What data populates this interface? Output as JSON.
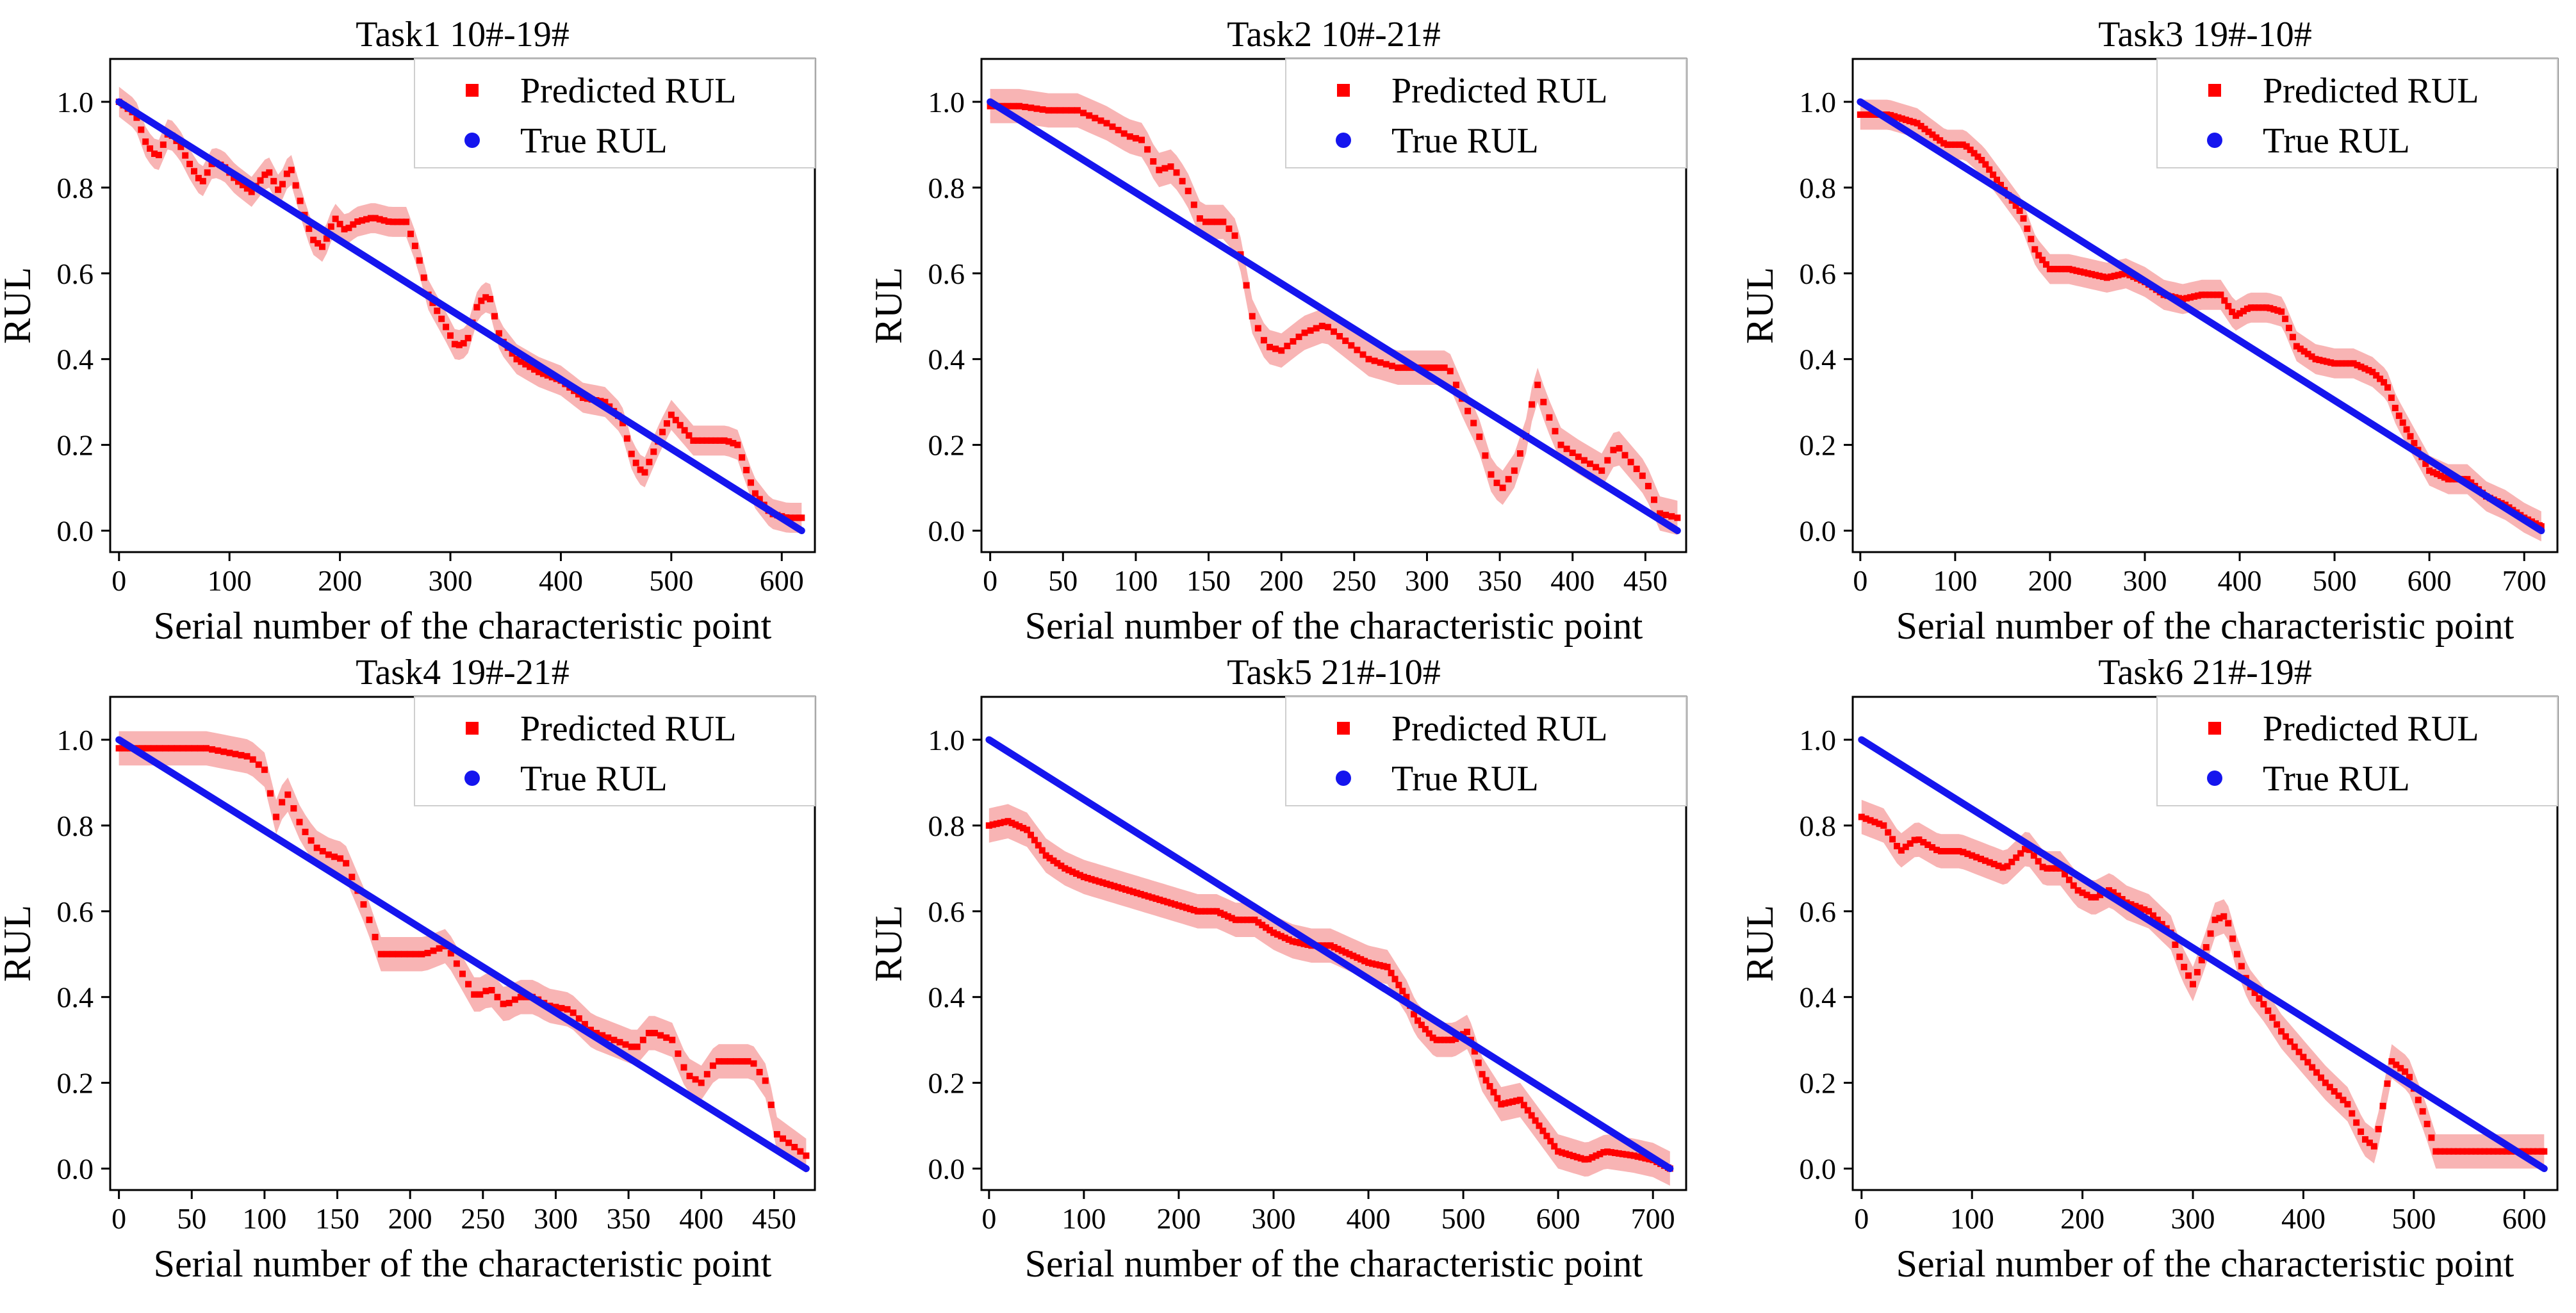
{
  "chart_data": [
    {
      "type": "line",
      "title": "Task1 10#-19#",
      "xlabel": "Serial number of the characteristic point",
      "ylabel": "RUL",
      "xlim": [
        -8,
        630
      ],
      "ylim": [
        -0.05,
        1.1
      ],
      "xticks": [
        0,
        100,
        200,
        300,
        400,
        500,
        600
      ],
      "yticks": [
        0.0,
        0.2,
        0.4,
        0.6,
        0.8,
        1.0
      ],
      "ytick_labels": [
        "0.0",
        "0.2",
        "0.4",
        "0.6",
        "0.8",
        "1.0"
      ],
      "legend": [
        "Predicted RUL",
        "True RUL"
      ],
      "legend_position": "top-right",
      "n_points": 618,
      "colors": {
        "predicted": "#ff0000",
        "band": "#f7a7a7",
        "true": "#1515ee"
      },
      "series": [
        {
          "name": "Predicted RUL",
          "x": [
            0,
            15,
            25,
            35,
            45,
            55,
            65,
            75,
            85,
            95,
            105,
            120,
            135,
            145,
            155,
            165,
            175,
            185,
            195,
            205,
            215,
            230,
            245,
            260,
            270,
            280,
            295,
            305,
            315,
            325,
            335,
            345,
            360,
            380,
            400,
            420,
            440,
            455,
            465,
            475,
            490,
            500,
            520,
            540,
            550,
            560,
            575,
            590,
            605,
            618
          ],
          "y": [
            1.0,
            0.97,
            0.9,
            0.87,
            0.93,
            0.9,
            0.85,
            0.81,
            0.86,
            0.85,
            0.82,
            0.79,
            0.84,
            0.79,
            0.85,
            0.76,
            0.68,
            0.66,
            0.73,
            0.7,
            0.72,
            0.73,
            0.72,
            0.72,
            0.65,
            0.55,
            0.48,
            0.43,
            0.44,
            0.53,
            0.55,
            0.45,
            0.4,
            0.37,
            0.35,
            0.31,
            0.3,
            0.26,
            0.17,
            0.13,
            0.22,
            0.27,
            0.21,
            0.21,
            0.21,
            0.2,
            0.09,
            0.04,
            0.03,
            0.03
          ],
          "band_halfwidth": 0.035
        },
        {
          "name": "True RUL",
          "x": [
            0,
            618
          ],
          "y": [
            1.0,
            0.0
          ]
        }
      ]
    },
    {
      "type": "line",
      "title": "Task2 10#-21#",
      "xlabel": "Serial number of the characteristic point",
      "ylabel": "RUL",
      "xlim": [
        -6,
        478
      ],
      "ylim": [
        -0.05,
        1.1
      ],
      "xticks": [
        0,
        50,
        100,
        150,
        200,
        250,
        300,
        350,
        400,
        450
      ],
      "yticks": [
        0.0,
        0.2,
        0.4,
        0.6,
        0.8,
        1.0
      ],
      "ytick_labels": [
        "0.0",
        "0.2",
        "0.4",
        "0.6",
        "0.8",
        "1.0"
      ],
      "legend": [
        "Predicted RUL",
        "True RUL"
      ],
      "legend_position": "top-right",
      "n_points": 472,
      "colors": {
        "predicted": "#ff0000",
        "band": "#f7a7a7",
        "true": "#1515ee"
      },
      "series": [
        {
          "name": "Predicted RUL",
          "x": [
            0,
            20,
            40,
            60,
            80,
            95,
            105,
            115,
            125,
            135,
            145,
            160,
            170,
            180,
            190,
            200,
            215,
            230,
            245,
            260,
            280,
            300,
            315,
            325,
            335,
            345,
            352,
            360,
            368,
            375,
            382,
            392,
            405,
            420,
            430,
            440,
            450,
            460,
            472
          ],
          "y": [
            0.99,
            0.99,
            0.98,
            0.98,
            0.95,
            0.92,
            0.91,
            0.84,
            0.85,
            0.8,
            0.72,
            0.72,
            0.68,
            0.5,
            0.43,
            0.42,
            0.46,
            0.48,
            0.44,
            0.4,
            0.38,
            0.38,
            0.38,
            0.3,
            0.23,
            0.12,
            0.1,
            0.14,
            0.22,
            0.35,
            0.28,
            0.2,
            0.17,
            0.14,
            0.2,
            0.16,
            0.12,
            0.04,
            0.03
          ],
          "band_halfwidth": 0.04
        },
        {
          "name": "True RUL",
          "x": [
            0,
            472
          ],
          "y": [
            1.0,
            0.0
          ]
        }
      ]
    },
    {
      "type": "line",
      "title": "Task3 19#-10#",
      "xlabel": "Serial number of the characteristic point",
      "ylabel": "RUL",
      "xlim": [
        -8,
        735
      ],
      "ylim": [
        -0.05,
        1.1
      ],
      "xticks": [
        0,
        100,
        200,
        300,
        400,
        500,
        600,
        700
      ],
      "yticks": [
        0.0,
        0.2,
        0.4,
        0.6,
        0.8,
        1.0
      ],
      "ytick_labels": [
        "0.0",
        "0.2",
        "0.4",
        "0.6",
        "0.8",
        "1.0"
      ],
      "legend": [
        "Predicted RUL",
        "True RUL"
      ],
      "legend_position": "top-right",
      "n_points": 718,
      "colors": {
        "predicted": "#ff0000",
        "band": "#f7a7a7",
        "true": "#1515ee"
      },
      "series": [
        {
          "name": "Predicted RUL",
          "x": [
            0,
            30,
            60,
            90,
            110,
            130,
            150,
            170,
            185,
            200,
            220,
            240,
            260,
            280,
            300,
            320,
            340,
            360,
            380,
            395,
            410,
            430,
            445,
            460,
            480,
            500,
            520,
            540,
            555,
            565,
            575,
            585,
            600,
            620,
            640,
            660,
            680,
            700,
            718
          ],
          "y": [
            0.97,
            0.97,
            0.95,
            0.9,
            0.9,
            0.86,
            0.8,
            0.74,
            0.65,
            0.61,
            0.61,
            0.6,
            0.59,
            0.6,
            0.58,
            0.55,
            0.54,
            0.55,
            0.55,
            0.5,
            0.52,
            0.52,
            0.51,
            0.43,
            0.4,
            0.39,
            0.39,
            0.37,
            0.34,
            0.28,
            0.24,
            0.2,
            0.14,
            0.12,
            0.12,
            0.08,
            0.06,
            0.03,
            0.01
          ],
          "band_halfwidth": 0.035
        },
        {
          "name": "True RUL",
          "x": [
            0,
            718
          ],
          "y": [
            1.0,
            0.0
          ]
        }
      ]
    },
    {
      "type": "line",
      "title": "Task4 19#-21#",
      "xlabel": "Serial number of the characteristic point",
      "ylabel": "RUL",
      "xlim": [
        -6,
        478
      ],
      "ylim": [
        -0.05,
        1.1
      ],
      "xticks": [
        0,
        50,
        100,
        150,
        200,
        250,
        300,
        350,
        400,
        450
      ],
      "yticks": [
        0.0,
        0.2,
        0.4,
        0.6,
        0.8,
        1.0
      ],
      "ytick_labels": [
        "0.0",
        "0.2",
        "0.4",
        "0.6",
        "0.8",
        "1.0"
      ],
      "legend": [
        "Predicted RUL",
        "True RUL"
      ],
      "legend_position": "top-right",
      "n_points": 472,
      "colors": {
        "predicted": "#ff0000",
        "band": "#f7a7a7",
        "true": "#1515ee"
      },
      "series": [
        {
          "name": "Predicted RUL",
          "x": [
            0,
            30,
            60,
            90,
            100,
            108,
            115,
            125,
            135,
            145,
            155,
            170,
            180,
            195,
            210,
            225,
            235,
            245,
            255,
            265,
            275,
            285,
            295,
            310,
            325,
            340,
            355,
            365,
            380,
            390,
            400,
            410,
            420,
            435,
            445,
            452,
            460,
            472
          ],
          "y": [
            0.98,
            0.98,
            0.98,
            0.96,
            0.93,
            0.82,
            0.88,
            0.8,
            0.75,
            0.73,
            0.72,
            0.6,
            0.5,
            0.5,
            0.5,
            0.52,
            0.46,
            0.4,
            0.42,
            0.38,
            0.4,
            0.4,
            0.38,
            0.37,
            0.32,
            0.3,
            0.28,
            0.32,
            0.3,
            0.22,
            0.2,
            0.25,
            0.25,
            0.25,
            0.2,
            0.08,
            0.06,
            0.03
          ],
          "band_halfwidth": 0.04
        },
        {
          "name": "True RUL",
          "x": [
            0,
            472
          ],
          "y": [
            1.0,
            0.0
          ]
        }
      ]
    },
    {
      "type": "line",
      "title": "Task5 21#-10#",
      "xlabel": "Serial number of the characteristic point",
      "ylabel": "RUL",
      "xlim": [
        -8,
        735
      ],
      "ylim": [
        -0.05,
        1.1
      ],
      "xticks": [
        0,
        100,
        200,
        300,
        400,
        500,
        600,
        700
      ],
      "yticks": [
        0.0,
        0.2,
        0.4,
        0.6,
        0.8,
        1.0
      ],
      "ytick_labels": [
        "0.0",
        "0.2",
        "0.4",
        "0.6",
        "0.8",
        "1.0"
      ],
      "legend": [
        "Predicted RUL",
        "True RUL"
      ],
      "legend_position": "top-right",
      "n_points": 718,
      "colors": {
        "predicted": "#ff0000",
        "band": "#f7a7a7",
        "true": "#1515ee"
      },
      "series": [
        {
          "name": "Predicted RUL",
          "x": [
            0,
            20,
            40,
            60,
            80,
            100,
            130,
            160,
            190,
            220,
            240,
            260,
            280,
            300,
            320,
            340,
            360,
            380,
            400,
            420,
            440,
            450,
            470,
            490,
            505,
            520,
            540,
            560,
            580,
            600,
            630,
            650,
            680,
            700,
            718
          ],
          "y": [
            0.8,
            0.81,
            0.79,
            0.73,
            0.7,
            0.68,
            0.66,
            0.64,
            0.62,
            0.6,
            0.6,
            0.58,
            0.58,
            0.55,
            0.53,
            0.52,
            0.52,
            0.5,
            0.48,
            0.47,
            0.4,
            0.35,
            0.3,
            0.3,
            0.32,
            0.22,
            0.15,
            0.16,
            0.1,
            0.04,
            0.02,
            0.04,
            0.03,
            0.02,
            0.0
          ],
          "band_halfwidth": 0.04
        },
        {
          "name": "True RUL",
          "x": [
            0,
            718
          ],
          "y": [
            1.0,
            0.0
          ]
        }
      ]
    },
    {
      "type": "line",
      "title": "Task6 21#-19#",
      "xlabel": "Serial number of the characteristic point",
      "ylabel": "RUL",
      "xlim": [
        -8,
        630
      ],
      "ylim": [
        -0.05,
        1.1
      ],
      "xticks": [
        0,
        100,
        200,
        300,
        400,
        500,
        600
      ],
      "yticks": [
        0.0,
        0.2,
        0.4,
        0.6,
        0.8,
        1.0
      ],
      "ytick_labels": [
        "0.0",
        "0.2",
        "0.4",
        "0.6",
        "0.8",
        "1.0"
      ],
      "legend": [
        "Predicted RUL",
        "True RUL"
      ],
      "legend_position": "top-right",
      "n_points": 618,
      "colors": {
        "predicted": "#ff0000",
        "band": "#f7a7a7",
        "true": "#1515ee"
      },
      "series": [
        {
          "name": "Predicted RUL",
          "x": [
            0,
            20,
            35,
            50,
            70,
            90,
            110,
            130,
            150,
            165,
            180,
            195,
            210,
            225,
            240,
            260,
            280,
            290,
            300,
            310,
            320,
            330,
            340,
            350,
            365,
            380,
            400,
            420,
            440,
            455,
            465,
            470,
            480,
            495,
            510,
            520,
            540,
            560,
            590,
            618
          ],
          "y": [
            0.82,
            0.8,
            0.74,
            0.77,
            0.74,
            0.74,
            0.72,
            0.7,
            0.75,
            0.7,
            0.7,
            0.65,
            0.63,
            0.65,
            0.62,
            0.6,
            0.55,
            0.48,
            0.43,
            0.5,
            0.58,
            0.59,
            0.5,
            0.43,
            0.38,
            0.32,
            0.26,
            0.2,
            0.15,
            0.07,
            0.05,
            0.12,
            0.25,
            0.22,
            0.12,
            0.04,
            0.04,
            0.04,
            0.04,
            0.04
          ],
          "band_halfwidth": 0.04
        },
        {
          "name": "True RUL",
          "x": [
            0,
            618
          ],
          "y": [
            1.0,
            0.0
          ]
        }
      ]
    }
  ]
}
